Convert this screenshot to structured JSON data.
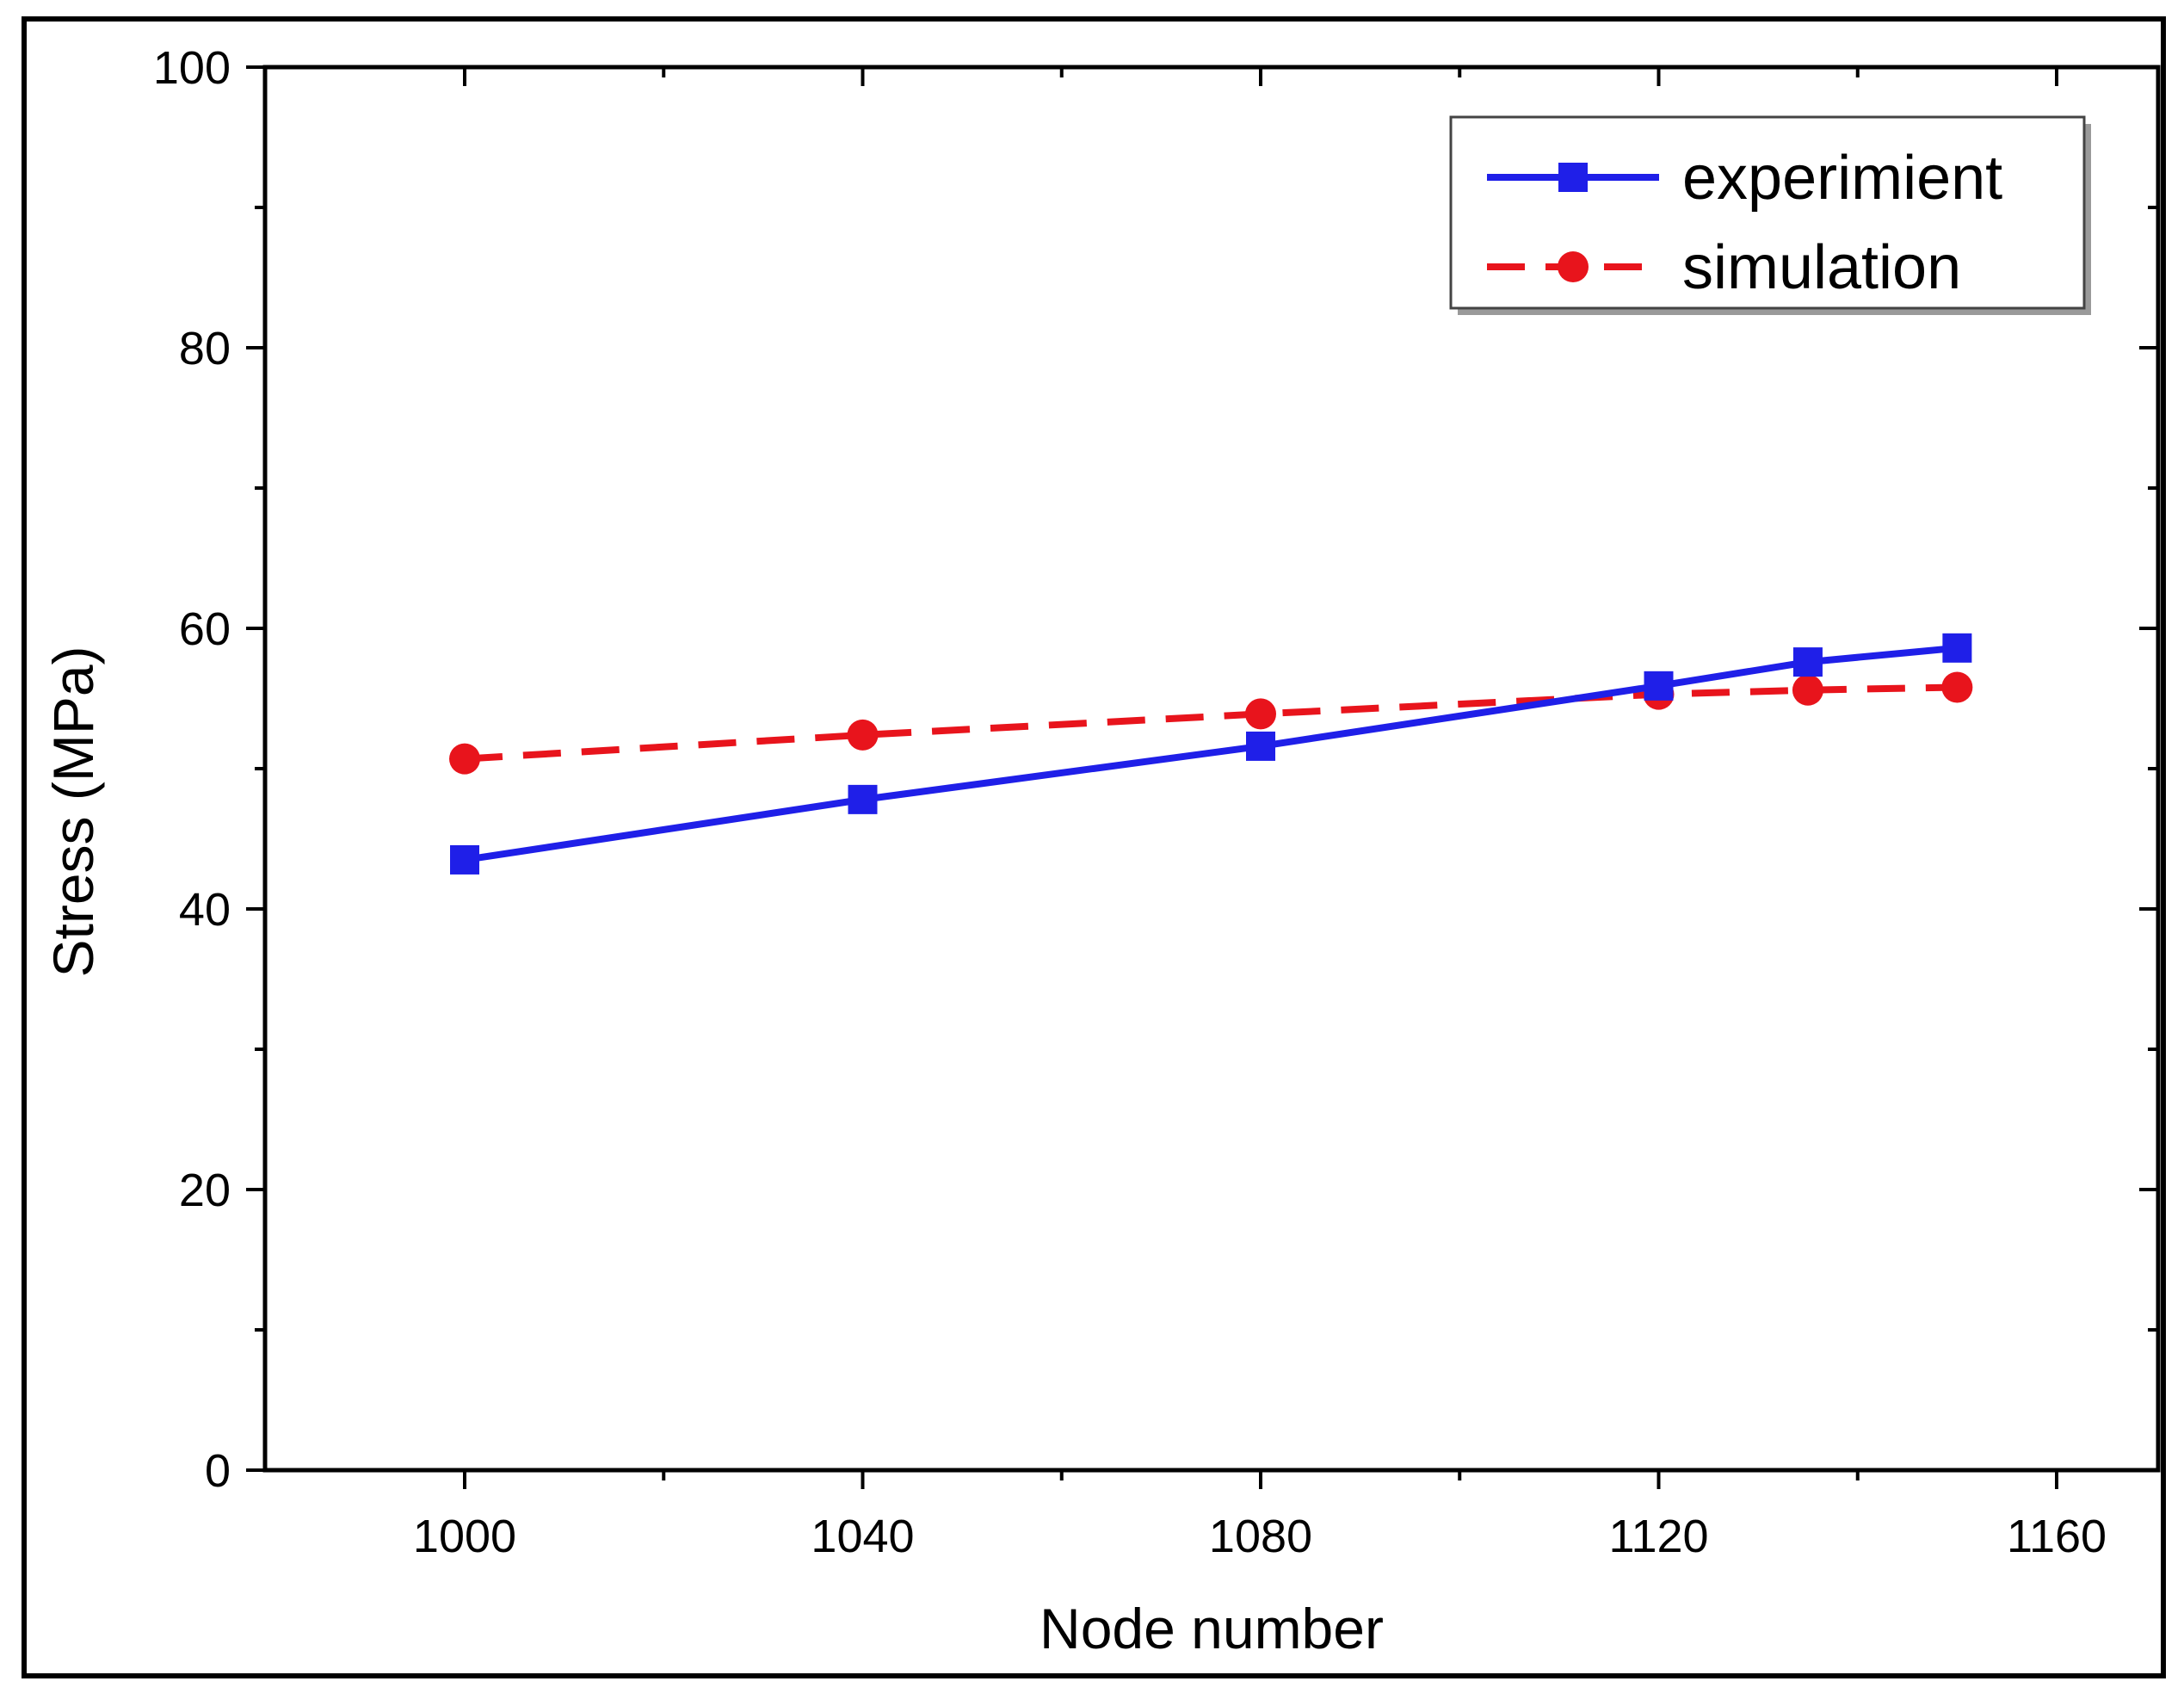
{
  "chart_data": {
    "type": "line",
    "title": "",
    "xlabel": "Node number",
    "ylabel": "Stress (MPa)",
    "xlim": [
      980,
      1170
    ],
    "ylim": [
      0,
      100
    ],
    "xticks": [
      1000,
      1040,
      1080,
      1120,
      1160
    ],
    "yticks": [
      0,
      20,
      40,
      60,
      80,
      100
    ],
    "grid": false,
    "legend_position": "top-right",
    "series": [
      {
        "name": "experimient",
        "color": "#1f1fe8",
        "marker": "square",
        "line_style": "solid",
        "x": [
          1000,
          1040,
          1080,
          1120,
          1135,
          1150
        ],
        "y": [
          43.5,
          47.8,
          51.6,
          55.9,
          57.6,
          58.6
        ]
      },
      {
        "name": "simulation",
        "color": "#e8141c",
        "marker": "circle",
        "line_style": "dashed",
        "x": [
          1000,
          1040,
          1080,
          1120,
          1135,
          1150
        ],
        "y": [
          50.7,
          52.4,
          53.9,
          55.3,
          55.6,
          55.8
        ]
      }
    ]
  }
}
